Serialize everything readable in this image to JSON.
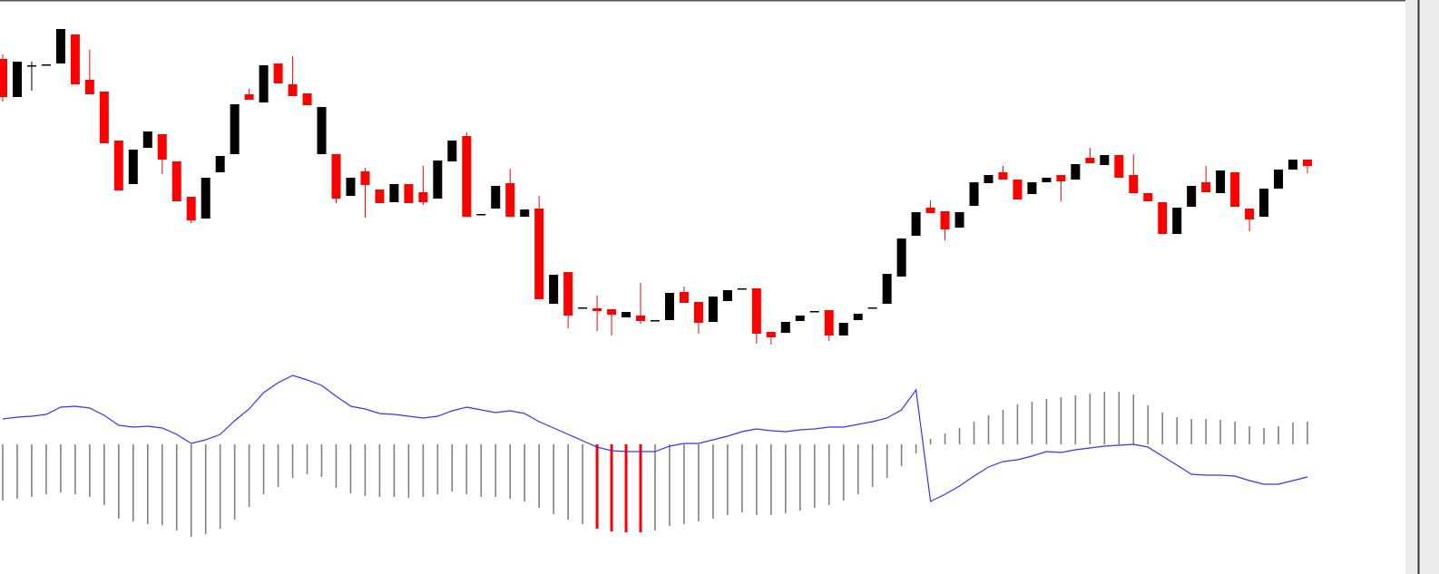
{
  "chart_data": [
    {
      "type": "candlestick",
      "up_color": "#ff0000",
      "down_color": "#000000",
      "ylim": [
        0,
        400
      ],
      "open": [
        293,
        332,
        328,
        329,
        368,
        307,
        296,
        242,
        190,
        235,
        255,
        224,
        178,
        157,
        204,
        228,
        285,
        290,
        328,
        308,
        294,
        284,
        282,
        181,
        204,
        196,
        176,
        197,
        176,
        177,
        223,
        245,
        161,
        164,
        195,
        161,
        169,
        70,
        97,
        52,
        61,
        57,
        53,
        56,
        46,
        47,
        77,
        66,
        44,
        73,
        80,
        82,
        32,
        28,
        45,
        52,
        57,
        30,
        44,
        54,
        61,
        98,
        137,
        166,
        165,
        147,
        166,
        199,
        207,
        202,
        180,
        199,
        204,
        200,
        219,
        220,
        229,
        204,
        187,
        178,
        142,
        171,
        195,
        188,
        212,
        172,
        158,
        192,
        213,
        224,
        217
      ],
      "high": [
        340,
        332,
        332,
        329,
        368,
        362,
        345,
        299,
        245,
        235,
        255,
        252,
        222,
        183,
        204,
        228,
        285,
        302,
        328,
        330,
        338,
        297,
        282,
        230,
        204,
        215,
        191,
        197,
        197,
        217,
        223,
        245,
        254,
        164,
        195,
        214,
        169,
        184,
        97,
        100,
        61,
        74,
        59,
        56,
        88,
        47,
        77,
        84,
        67,
        73,
        80,
        82,
        82,
        34,
        45,
        52,
        57,
        58,
        44,
        54,
        61,
        98,
        137,
        166,
        179,
        167,
        166,
        199,
        207,
        217,
        202,
        199,
        204,
        207,
        219,
        237,
        229,
        229,
        230,
        187,
        177,
        171,
        195,
        217,
        212,
        210,
        170,
        192,
        213,
        224,
        224
      ],
      "low": [
        288,
        293,
        300,
        328,
        330,
        307,
        296,
        242,
        190,
        197,
        237,
        208,
        178,
        154,
        159,
        210,
        230,
        290,
        287,
        308,
        294,
        284,
        230,
        176,
        184,
        160,
        176,
        177,
        176,
        174,
        181,
        222,
        161,
        163,
        170,
        161,
        161,
        70,
        65,
        38,
        60,
        35,
        30,
        50,
        43,
        46,
        47,
        66,
        32,
        45,
        68,
        81,
        21,
        20,
        33,
        46,
        56,
        24,
        30,
        47,
        60,
        65,
        95,
        140,
        165,
        135,
        149,
        173,
        198,
        202,
        180,
        186,
        199,
        178,
        202,
        220,
        218,
        204,
        187,
        178,
        142,
        142,
        172,
        188,
        187,
        172,
        145,
        161,
        192,
        213,
        209
      ],
      "close": [
        335,
        293,
        328,
        328,
        330,
        362,
        312,
        299,
        245,
        197,
        237,
        252,
        222,
        183,
        159,
        210,
        230,
        296,
        287,
        330,
        307,
        297,
        230,
        230,
        184,
        211,
        191,
        177,
        197,
        188,
        181,
        222,
        250,
        163,
        170,
        198,
        161,
        170,
        65,
        100,
        60,
        60,
        59,
        50,
        52,
        46,
        47,
        78,
        67,
        45,
        68,
        81,
        82,
        34,
        33,
        46,
        56,
        58,
        30,
        47,
        60,
        65,
        95,
        140,
        171,
        167,
        149,
        173,
        198,
        210,
        202,
        186,
        199,
        207,
        202,
        226,
        218,
        229,
        207,
        187,
        177,
        142,
        172,
        199,
        187,
        210,
        170,
        161,
        192,
        213,
        224
      ]
    },
    {
      "type": "macd",
      "ylim": [
        -143,
        143
      ],
      "series": [
        {
          "values": [
            -62,
            -60,
            -58,
            -55,
            -53,
            -55,
            -58,
            -67,
            -82,
            -85,
            -88,
            -89,
            -95,
            -102,
            -99,
            -93,
            -83,
            -69,
            -55,
            -47,
            -37,
            -33,
            -36,
            -48,
            -54,
            -57,
            -58,
            -58,
            -59,
            -58,
            -55,
            -52,
            -55,
            -58,
            -58,
            -60,
            -63,
            -70,
            -77,
            -83,
            -88,
            -93,
            -96,
            -97,
            -97,
            -95,
            -90,
            -88,
            -85,
            -82,
            -78,
            -75,
            -78,
            -78,
            -76,
            -73,
            -70,
            -67,
            -62,
            -55,
            -47,
            -37,
            -24,
            -10,
            6,
            12,
            18,
            25,
            32,
            38,
            44,
            47,
            50,
            52,
            54,
            56,
            58,
            58,
            55,
            43,
            35,
            30,
            28,
            28,
            27,
            25,
            20,
            18,
            20,
            24,
            25
          ],
          "colors": [
            "#808080",
            "#808080",
            "#808080",
            "#808080",
            "#808080",
            "#808080",
            "#808080",
            "#808080",
            "#808080",
            "#808080",
            "#808080",
            "#808080",
            "#808080",
            "#808080",
            "#808080",
            "#808080",
            "#808080",
            "#808080",
            "#808080",
            "#808080",
            "#808080",
            "#808080",
            "#808080",
            "#808080",
            "#808080",
            "#808080",
            "#808080",
            "#808080",
            "#808080",
            "#808080",
            "#808080",
            "#808080",
            "#808080",
            "#808080",
            "#808080",
            "#808080",
            "#808080",
            "#808080",
            "#808080",
            "#808080",
            "#808080",
            "#ff0000",
            "#ff0000",
            "#ff0000",
            "#ff0000",
            "#808080",
            "#808080",
            "#808080",
            "#808080",
            "#808080",
            "#808080",
            "#808080",
            "#808080",
            "#808080",
            "#808080",
            "#808080",
            "#808080",
            "#808080",
            "#808080",
            "#808080",
            "#808080",
            "#808080",
            "#808080",
            "#808080",
            "#808080",
            "#808080",
            "#808080",
            "#808080",
            "#808080",
            "#808080",
            "#808080",
            "#808080",
            "#808080",
            "#808080",
            "#808080",
            "#808080",
            "#808080",
            "#808080",
            "#808080",
            "#808080",
            "#808080",
            "#808080",
            "#808080",
            "#808080",
            "#808080",
            "#808080",
            "#808080",
            "#808080",
            "#808080",
            "#808080",
            "#808080"
          ]
        },
        {
          "color": "#3333ff",
          "values": [
            28,
            30,
            31,
            33,
            41,
            42,
            40,
            32,
            21,
            19,
            20,
            18,
            11,
            1,
            5,
            11,
            26,
            39,
            57,
            68,
            76,
            71,
            65,
            53,
            42,
            39,
            34,
            33,
            31,
            29,
            31,
            37,
            41,
            38,
            35,
            37,
            34,
            25,
            18,
            11,
            4,
            -3,
            -7,
            -8,
            -8,
            -8,
            -2,
            1,
            1,
            5,
            9,
            14,
            17,
            15,
            14,
            16,
            17,
            19,
            19,
            22,
            25,
            29,
            38,
            60,
            -63,
            -55,
            -46,
            -35,
            -25,
            -19,
            -17,
            -13,
            -8,
            -9,
            -6,
            -4,
            -2,
            -1,
            0,
            -3,
            -13,
            -23,
            -33,
            -34,
            -34,
            -35,
            -40,
            -44,
            -44,
            -40,
            -36
          ]
        }
      ]
    }
  ]
}
